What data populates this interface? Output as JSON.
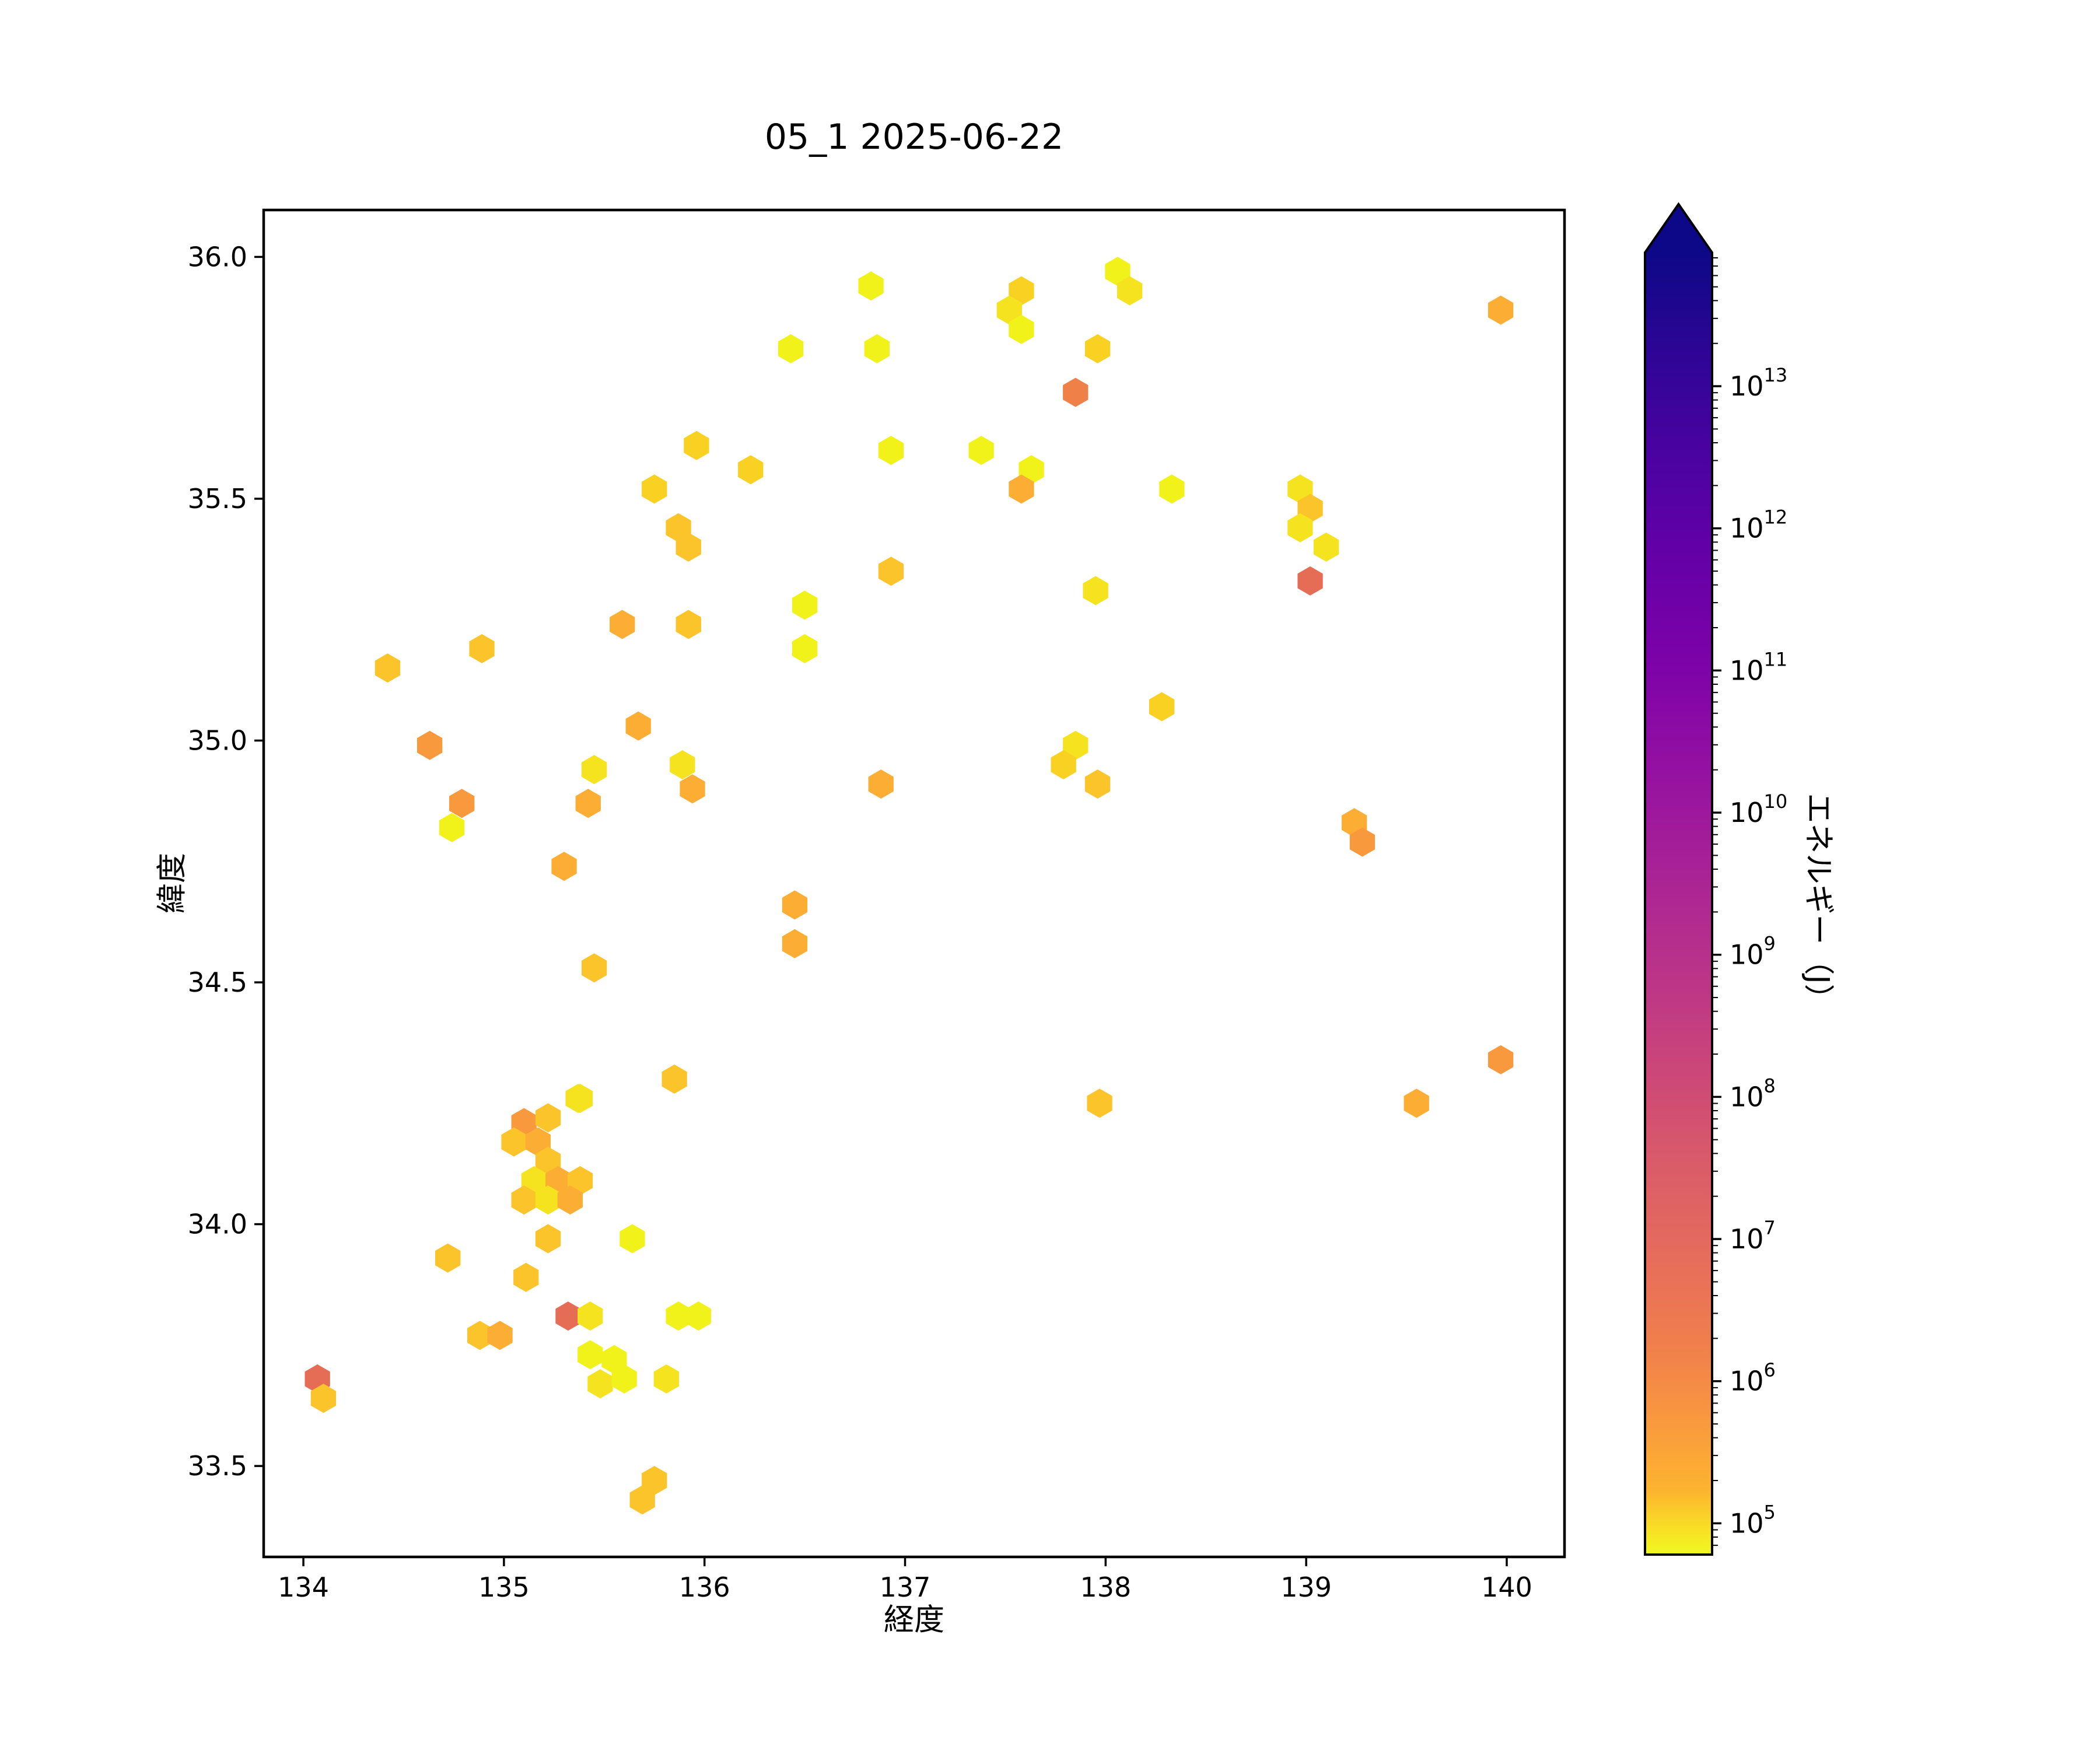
{
  "title": "05_1 2025-06-22",
  "axes": {
    "xlabel": "経度",
    "ylabel": "緯度",
    "x_ticks": [
      134,
      135,
      136,
      137,
      138,
      139,
      140
    ],
    "y_ticks": [
      36.0,
      35.5,
      35.0,
      34.5,
      34.0,
      33.5
    ],
    "xlim": [
      133.802,
      140.288
    ],
    "ylim": [
      33.312,
      36.097
    ]
  },
  "colorbar": {
    "label": "エネルギー（J）",
    "scale": "log",
    "tick_exponents": [
      5,
      6,
      7,
      8,
      9,
      10,
      11,
      12,
      13
    ],
    "log_min_exp": 4.78,
    "log_max_exp": 13.94,
    "extend": "max",
    "arrow_color": "#0d0887",
    "gradient": [
      [
        "#0d0887",
        0.0
      ],
      [
        "#2f0596",
        0.08
      ],
      [
        "#4c02a1",
        0.16
      ],
      [
        "#6600a7",
        0.24
      ],
      [
        "#7e03a8",
        0.32
      ],
      [
        "#9511a1",
        0.4
      ],
      [
        "#aa2395",
        0.48
      ],
      [
        "#bc3587",
        0.56
      ],
      [
        "#cc4778",
        0.63
      ],
      [
        "#da5b69",
        0.7
      ],
      [
        "#e66c5c",
        0.77
      ],
      [
        "#f07f4c",
        0.84
      ],
      [
        "#f99a3e",
        0.9
      ],
      [
        "#fdb32f",
        0.95
      ],
      [
        "#f8df25",
        0.98
      ],
      [
        "#f0f921",
        1.0
      ]
    ]
  },
  "chart_data": {
    "type": "hexbin",
    "title": "05_1 2025-06-22",
    "xlabel": "経度",
    "ylabel": "緯度",
    "clabel": "エネルギー（J）",
    "xlim": [
      133.802,
      140.288
    ],
    "ylim": [
      33.312,
      36.097
    ],
    "color_levels": {
      "y1": {
        "hex": "#f2f21b",
        "approx_energy_j": 80000.0
      },
      "y2": {
        "hex": "#f5e31f",
        "approx_energy_j": 120000.0
      },
      "y3": {
        "hex": "#f8d122",
        "approx_energy_j": 180000.0
      },
      "g": {
        "hex": "#fcc42b",
        "approx_energy_j": 320000.0
      },
      "a": {
        "hex": "#fcad33",
        "approx_energy_j": 900000.0
      },
      "o": {
        "hex": "#f9993e",
        "approx_energy_j": 3000000.0
      },
      "d": {
        "hex": "#ef8148",
        "approx_energy_j": 11000000.0
      },
      "s": {
        "hex": "#e66d55",
        "approx_energy_j": 28000000.0
      }
    },
    "points": [
      {
        "lon": 138.06,
        "lat": 35.97,
        "level": "y1"
      },
      {
        "lon": 138.12,
        "lat": 35.93,
        "level": "y2"
      },
      {
        "lon": 136.83,
        "lat": 35.94,
        "level": "y1"
      },
      {
        "lon": 137.58,
        "lat": 35.93,
        "level": "y3"
      },
      {
        "lon": 137.52,
        "lat": 35.89,
        "level": "y2"
      },
      {
        "lon": 137.58,
        "lat": 35.85,
        "level": "y1"
      },
      {
        "lon": 139.97,
        "lat": 35.89,
        "level": "a"
      },
      {
        "lon": 136.43,
        "lat": 35.81,
        "level": "y1"
      },
      {
        "lon": 136.86,
        "lat": 35.81,
        "level": "y1"
      },
      {
        "lon": 137.96,
        "lat": 35.81,
        "level": "y3"
      },
      {
        "lon": 137.85,
        "lat": 35.72,
        "level": "d"
      },
      {
        "lon": 135.96,
        "lat": 35.61,
        "level": "y3"
      },
      {
        "lon": 136.23,
        "lat": 35.56,
        "level": "y3"
      },
      {
        "lon": 135.75,
        "lat": 35.52,
        "level": "y3"
      },
      {
        "lon": 136.93,
        "lat": 35.6,
        "level": "y1"
      },
      {
        "lon": 137.38,
        "lat": 35.6,
        "level": "y1"
      },
      {
        "lon": 137.63,
        "lat": 35.56,
        "level": "y1"
      },
      {
        "lon": 137.58,
        "lat": 35.52,
        "level": "a"
      },
      {
        "lon": 138.97,
        "lat": 35.52,
        "level": "y2"
      },
      {
        "lon": 138.33,
        "lat": 35.52,
        "level": "y1"
      },
      {
        "lon": 139.02,
        "lat": 35.48,
        "level": "g"
      },
      {
        "lon": 138.97,
        "lat": 35.44,
        "level": "y2"
      },
      {
        "lon": 139.1,
        "lat": 35.4,
        "level": "y2"
      },
      {
        "lon": 135.87,
        "lat": 35.44,
        "level": "g"
      },
      {
        "lon": 135.92,
        "lat": 35.4,
        "level": "g"
      },
      {
        "lon": 136.93,
        "lat": 35.35,
        "level": "g"
      },
      {
        "lon": 139.02,
        "lat": 35.33,
        "level": "s"
      },
      {
        "lon": 137.95,
        "lat": 35.31,
        "level": "y2"
      },
      {
        "lon": 136.5,
        "lat": 35.28,
        "level": "y1"
      },
      {
        "lon": 136.5,
        "lat": 35.19,
        "level": "y1"
      },
      {
        "lon": 135.59,
        "lat": 35.24,
        "level": "a"
      },
      {
        "lon": 135.92,
        "lat": 35.24,
        "level": "g"
      },
      {
        "lon": 138.28,
        "lat": 35.07,
        "level": "y3"
      },
      {
        "lon": 134.42,
        "lat": 35.15,
        "level": "g"
      },
      {
        "lon": 134.89,
        "lat": 35.19,
        "level": "g"
      },
      {
        "lon": 137.85,
        "lat": 34.99,
        "level": "y2"
      },
      {
        "lon": 137.79,
        "lat": 34.95,
        "level": "y3"
      },
      {
        "lon": 137.96,
        "lat": 34.91,
        "level": "g"
      },
      {
        "lon": 136.88,
        "lat": 34.91,
        "level": "a"
      },
      {
        "lon": 134.63,
        "lat": 34.99,
        "level": "o"
      },
      {
        "lon": 135.67,
        "lat": 35.03,
        "level": "a"
      },
      {
        "lon": 135.45,
        "lat": 34.94,
        "level": "y2"
      },
      {
        "lon": 135.89,
        "lat": 34.95,
        "level": "y2"
      },
      {
        "lon": 135.94,
        "lat": 34.9,
        "level": "a"
      },
      {
        "lon": 134.79,
        "lat": 34.87,
        "level": "o"
      },
      {
        "lon": 134.74,
        "lat": 34.82,
        "level": "y1"
      },
      {
        "lon": 135.42,
        "lat": 34.87,
        "level": "a"
      },
      {
        "lon": 139.24,
        "lat": 34.83,
        "level": "a"
      },
      {
        "lon": 139.28,
        "lat": 34.79,
        "level": "o"
      },
      {
        "lon": 135.3,
        "lat": 34.74,
        "level": "a"
      },
      {
        "lon": 136.45,
        "lat": 34.66,
        "level": "a"
      },
      {
        "lon": 136.45,
        "lat": 34.58,
        "level": "a"
      },
      {
        "lon": 135.45,
        "lat": 34.53,
        "level": "g"
      },
      {
        "lon": 135.85,
        "lat": 34.3,
        "level": "g"
      },
      {
        "lon": 135.37,
        "lat": 34.26,
        "level": "y2"
      },
      {
        "lon": 137.97,
        "lat": 34.25,
        "level": "g"
      },
      {
        "lon": 139.55,
        "lat": 34.25,
        "level": "a"
      },
      {
        "lon": 139.97,
        "lat": 34.34,
        "level": "o"
      },
      {
        "lon": 135.1,
        "lat": 34.21,
        "level": "o"
      },
      {
        "lon": 135.22,
        "lat": 34.22,
        "level": "g"
      },
      {
        "lon": 135.38,
        "lat": 34.26,
        "level": "y2"
      },
      {
        "lon": 135.05,
        "lat": 34.17,
        "level": "g"
      },
      {
        "lon": 135.17,
        "lat": 34.17,
        "level": "a"
      },
      {
        "lon": 135.22,
        "lat": 34.13,
        "level": "g"
      },
      {
        "lon": 135.15,
        "lat": 34.09,
        "level": "y2"
      },
      {
        "lon": 135.27,
        "lat": 34.09,
        "level": "a"
      },
      {
        "lon": 135.38,
        "lat": 34.09,
        "level": "g"
      },
      {
        "lon": 135.1,
        "lat": 34.05,
        "level": "g"
      },
      {
        "lon": 135.22,
        "lat": 34.05,
        "level": "y2"
      },
      {
        "lon": 135.33,
        "lat": 34.05,
        "level": "a"
      },
      {
        "lon": 135.22,
        "lat": 33.97,
        "level": "g"
      },
      {
        "lon": 135.64,
        "lat": 33.97,
        "level": "y1"
      },
      {
        "lon": 134.72,
        "lat": 33.93,
        "level": "g"
      },
      {
        "lon": 135.11,
        "lat": 33.89,
        "level": "g"
      },
      {
        "lon": 134.88,
        "lat": 33.77,
        "level": "g"
      },
      {
        "lon": 134.98,
        "lat": 33.77,
        "level": "a"
      },
      {
        "lon": 135.32,
        "lat": 33.81,
        "level": "s"
      },
      {
        "lon": 135.43,
        "lat": 33.81,
        "level": "y2"
      },
      {
        "lon": 135.87,
        "lat": 33.81,
        "level": "y1"
      },
      {
        "lon": 135.97,
        "lat": 33.81,
        "level": "y1"
      },
      {
        "lon": 135.43,
        "lat": 33.73,
        "level": "y1"
      },
      {
        "lon": 135.55,
        "lat": 33.72,
        "level": "y1"
      },
      {
        "lon": 135.48,
        "lat": 33.67,
        "level": "y2"
      },
      {
        "lon": 135.6,
        "lat": 33.68,
        "level": "y1"
      },
      {
        "lon": 135.81,
        "lat": 33.68,
        "level": "y2"
      },
      {
        "lon": 134.07,
        "lat": 33.68,
        "level": "s"
      },
      {
        "lon": 134.1,
        "lat": 33.64,
        "level": "g"
      },
      {
        "lon": 135.75,
        "lat": 33.47,
        "level": "g"
      },
      {
        "lon": 135.69,
        "lat": 33.43,
        "level": "g"
      }
    ]
  }
}
